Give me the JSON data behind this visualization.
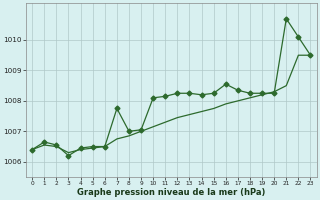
{
  "line1_x": [
    0,
    1,
    2,
    3,
    4,
    5,
    6,
    7,
    8,
    9,
    10,
    11,
    12,
    13,
    14,
    15,
    16,
    17,
    18,
    19,
    20,
    21,
    22,
    23
  ],
  "line1_y": [
    1006.4,
    1006.65,
    1006.55,
    1006.2,
    1006.45,
    1006.5,
    1006.5,
    1007.75,
    1007.0,
    1007.05,
    1008.1,
    1008.15,
    1008.25,
    1008.25,
    1008.2,
    1008.25,
    1008.55,
    1008.35,
    1008.25,
    1008.25,
    1008.25,
    1010.7,
    1010.1,
    1009.5
  ],
  "line2_x": [
    0,
    1,
    2,
    3,
    4,
    5,
    6,
    7,
    8,
    9,
    10,
    11,
    12,
    13,
    14,
    15,
    16,
    17,
    18,
    19,
    20,
    21,
    22,
    23
  ],
  "line2_y": [
    1006.4,
    1006.55,
    1006.5,
    1006.3,
    1006.4,
    1006.45,
    1006.5,
    1006.75,
    1006.85,
    1007.0,
    1007.15,
    1007.3,
    1007.45,
    1007.55,
    1007.65,
    1007.75,
    1007.9,
    1008.0,
    1008.1,
    1008.2,
    1008.3,
    1008.5,
    1009.5,
    1009.5
  ],
  "line_color": "#2d6a2d",
  "bg_color": "#d8f0f0",
  "grid_color": "#b0c8c8",
  "ylabel_values": [
    1006,
    1007,
    1008,
    1009,
    1010
  ],
  "ymin": 1005.5,
  "ymax": 1011.2,
  "xlabel": "Graphe pression niveau de la mer (hPa)",
  "marker_size": 2.5,
  "linewidth": 0.9,
  "xlabel_fontsize": 6.0,
  "xtick_fontsize": 4.2,
  "ytick_fontsize": 5.2
}
